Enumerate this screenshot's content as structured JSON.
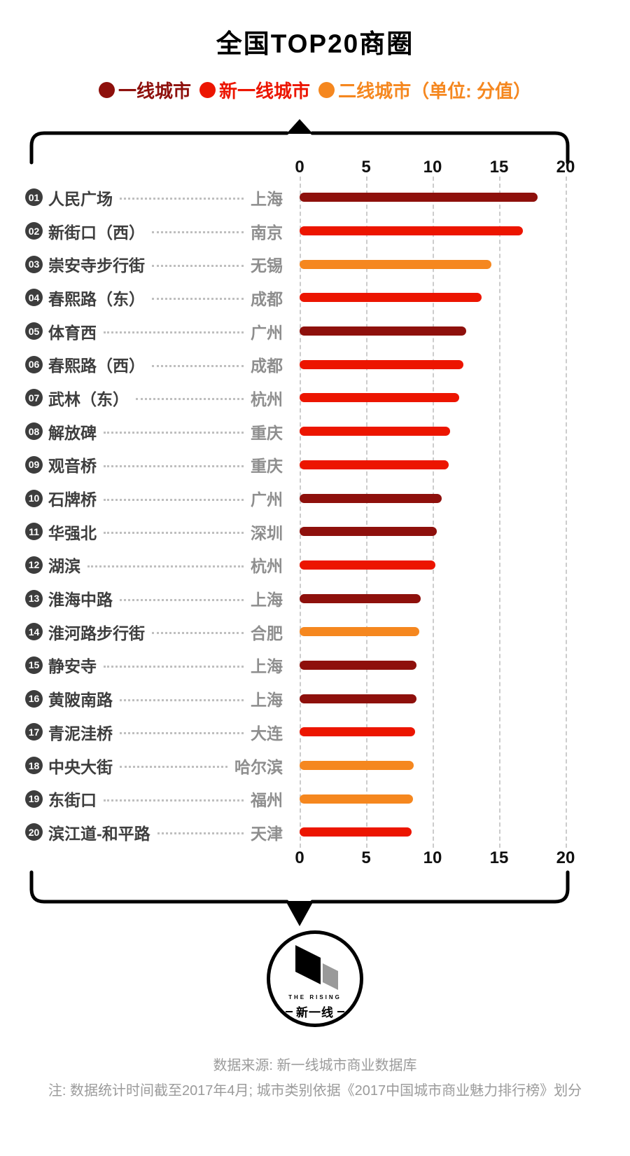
{
  "title": "全国TOP20商圈",
  "legend": [
    {
      "label": "一线城市",
      "color": "#8E100C"
    },
    {
      "label": "新一线城市",
      "color": "#EC1500"
    },
    {
      "label": "二线城市（单位: 分值）",
      "color": "#F5871F"
    }
  ],
  "chart_data": {
    "type": "bar",
    "orientation": "horizontal",
    "title": "全国TOP20商圈",
    "xlabel": "分值",
    "xlim": [
      0,
      20
    ],
    "ticks": [
      0,
      5,
      10,
      15,
      20
    ],
    "grid": "dashed-vertical",
    "colors": {
      "tier1": "#8E100C",
      "new_tier1": "#EC1500",
      "tier2": "#F5871F"
    },
    "tier_names": {
      "tier1": "一线城市",
      "new_tier1": "新一线城市",
      "tier2": "二线城市"
    },
    "rows": [
      {
        "rank": "01",
        "name": "人民广场",
        "city": "上海",
        "tier": "tier1",
        "value": 17.9
      },
      {
        "rank": "02",
        "name": "新街口（西）",
        "city": "南京",
        "tier": "new_tier1",
        "value": 16.8
      },
      {
        "rank": "03",
        "name": "崇安寺步行街",
        "city": "无锡",
        "tier": "tier2",
        "value": 14.4
      },
      {
        "rank": "04",
        "name": "春熙路（东）",
        "city": "成都",
        "tier": "new_tier1",
        "value": 13.7
      },
      {
        "rank": "05",
        "name": "体育西",
        "city": "广州",
        "tier": "tier1",
        "value": 12.5
      },
      {
        "rank": "06",
        "name": "春熙路（西）",
        "city": "成都",
        "tier": "new_tier1",
        "value": 12.3
      },
      {
        "rank": "07",
        "name": "武林（东）",
        "city": "杭州",
        "tier": "new_tier1",
        "value": 12.0
      },
      {
        "rank": "08",
        "name": "解放碑",
        "city": "重庆",
        "tier": "new_tier1",
        "value": 11.3
      },
      {
        "rank": "09",
        "name": "观音桥",
        "city": "重庆",
        "tier": "new_tier1",
        "value": 11.2
      },
      {
        "rank": "10",
        "name": "石牌桥",
        "city": "广州",
        "tier": "tier1",
        "value": 10.7
      },
      {
        "rank": "11",
        "name": "华强北",
        "city": "深圳",
        "tier": "tier1",
        "value": 10.3
      },
      {
        "rank": "12",
        "name": "湖滨",
        "city": "杭州",
        "tier": "new_tier1",
        "value": 10.2
      },
      {
        "rank": "13",
        "name": "淮海中路",
        "city": "上海",
        "tier": "tier1",
        "value": 9.1
      },
      {
        "rank": "14",
        "name": "淮河路步行街",
        "city": "合肥",
        "tier": "tier2",
        "value": 9.0
      },
      {
        "rank": "15",
        "name": "静安寺",
        "city": "上海",
        "tier": "tier1",
        "value": 8.8
      },
      {
        "rank": "16",
        "name": "黄陂南路",
        "city": "上海",
        "tier": "tier1",
        "value": 8.8
      },
      {
        "rank": "17",
        "name": "青泥洼桥",
        "city": "大连",
        "tier": "new_tier1",
        "value": 8.7
      },
      {
        "rank": "18",
        "name": "中央大街",
        "city": "哈尔滨",
        "tier": "tier2",
        "value": 8.6
      },
      {
        "rank": "19",
        "name": "东街口",
        "city": "福州",
        "tier": "tier2",
        "value": 8.5
      },
      {
        "rank": "20",
        "name": "滨江道-和平路",
        "city": "天津",
        "tier": "new_tier1",
        "value": 8.4
      }
    ]
  },
  "logo": {
    "brand_small": "THE RISING",
    "brand": "新一线"
  },
  "footer": {
    "source": "数据来源: 新一线城市商业数据库",
    "note": "注: 数据统计时间截至2017年4月; 城市类别依据《2017中国城市商业魅力排行榜》划分"
  }
}
